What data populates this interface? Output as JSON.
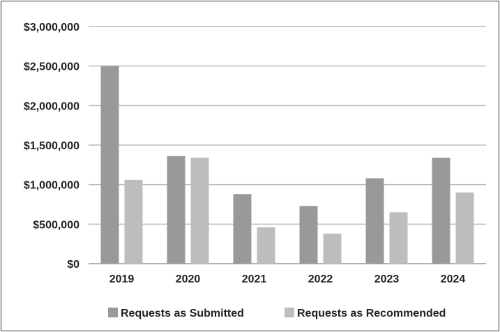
{
  "chart_data": {
    "type": "bar",
    "title": "",
    "xlabel": "",
    "ylabel": "",
    "categories": [
      "2019",
      "2020",
      "2021",
      "2022",
      "2023",
      "2024"
    ],
    "series": [
      {
        "name": "Requests as Submitted",
        "color": "#999999",
        "values": [
          2500000,
          1360000,
          880000,
          730000,
          1080000,
          1340000
        ]
      },
      {
        "name": "Requests as Recommended",
        "color": "#bdbdbd",
        "values": [
          1060000,
          1340000,
          460000,
          380000,
          650000,
          900000
        ]
      }
    ],
    "ylim": [
      0,
      3000000
    ],
    "yticks": [
      0,
      500000,
      1000000,
      1500000,
      2000000,
      2500000,
      3000000
    ],
    "ytick_labels": [
      "$0",
      "$500,000",
      "$1,000,000",
      "$1,500,000",
      "$2,000,000",
      "$2,500,000",
      "$3,000,000"
    ],
    "grid": true,
    "legend_position": "bottom",
    "colors": {
      "gridline": "#bbbbbb",
      "axis": "#999999",
      "border": "#333333",
      "text": "#222222"
    }
  }
}
